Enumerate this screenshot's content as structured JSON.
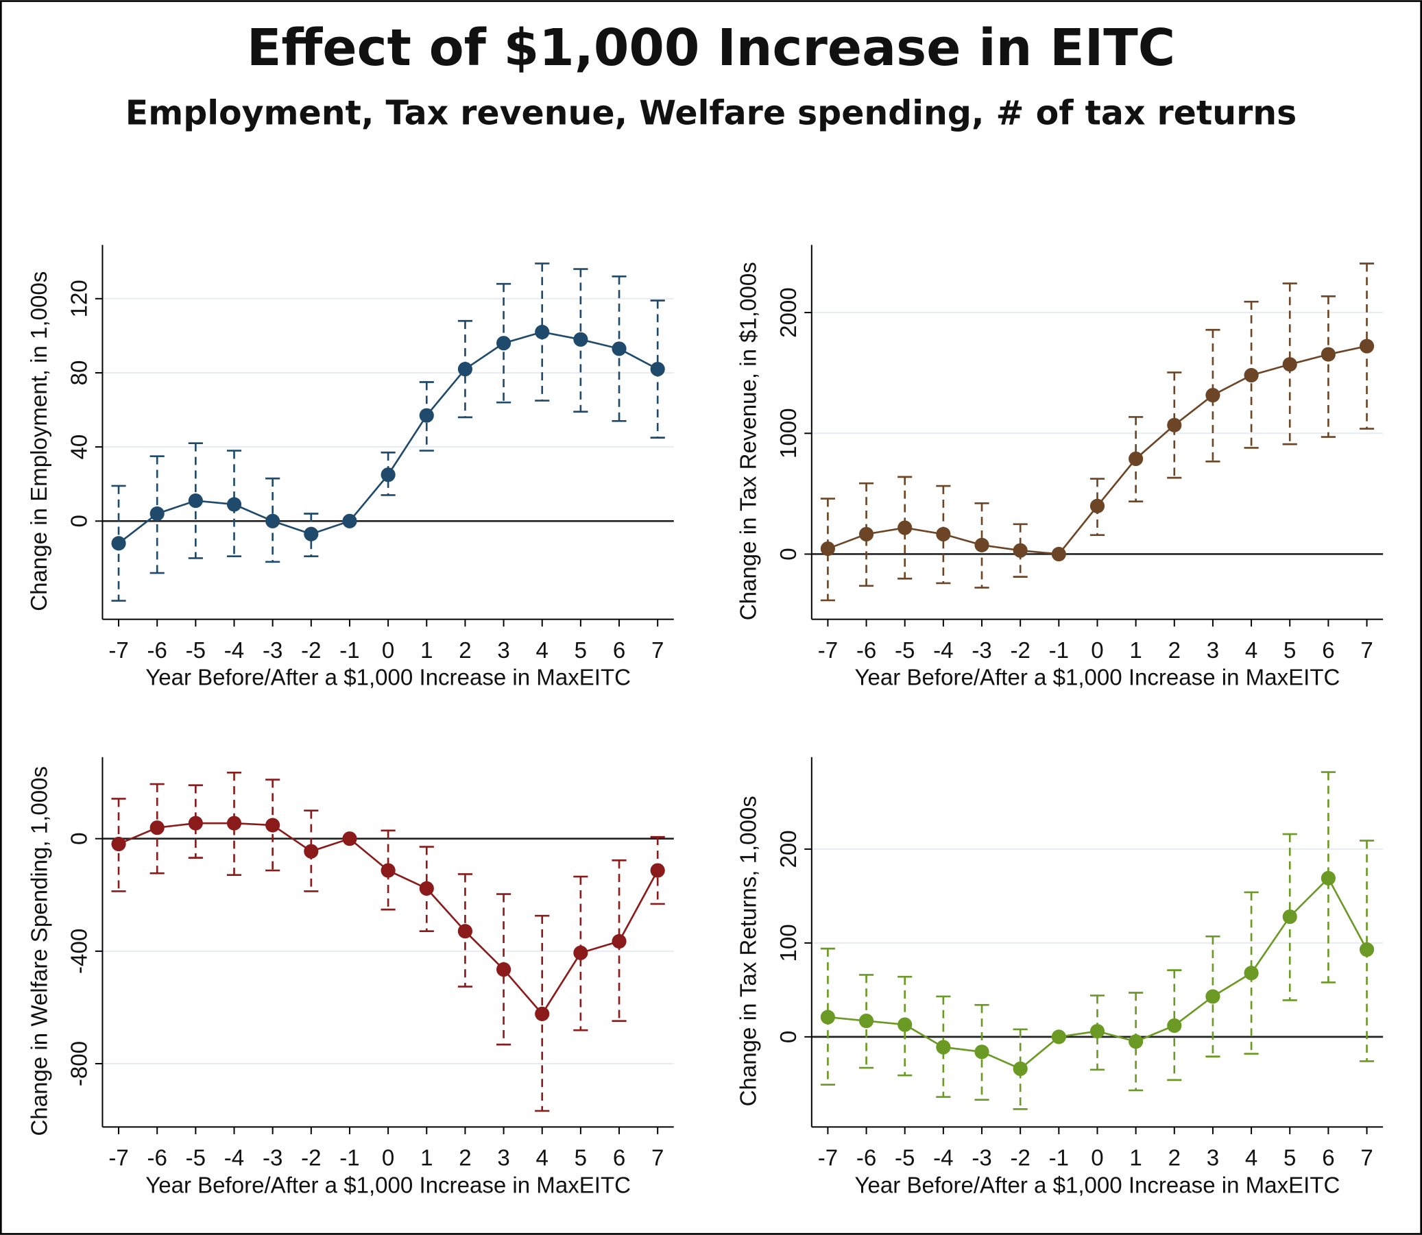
{
  "title": "Effect of $1,000 Increase in EITC",
  "subtitle": "Employment, Tax revenue, Welfare spending, # of tax returns",
  "chart_data": [
    {
      "type": "line",
      "ylabel": "Change in Employment, in 1,000s",
      "xlabel": "Year Before/After a $1,000 Increase in MaxEITC",
      "color": "#1f4a6b",
      "grid": true,
      "x": [
        -7,
        -6,
        -5,
        -4,
        -3,
        -2,
        -1,
        0,
        1,
        2,
        3,
        4,
        5,
        6,
        7
      ],
      "values": [
        -12,
        4,
        11,
        9,
        0,
        -7,
        0,
        25,
        57,
        82,
        96,
        102,
        98,
        93,
        82
      ],
      "ci_low": [
        -43,
        -28,
        -20,
        -19,
        -22,
        -19,
        0,
        14,
        38,
        56,
        64,
        65,
        59,
        54,
        45
      ],
      "ci_high": [
        19,
        35,
        42,
        38,
        23,
        4,
        0,
        37,
        75,
        108,
        128,
        139,
        136,
        132,
        119
      ],
      "xlim": [
        -7.42,
        7.42
      ],
      "ylim": [
        -53,
        149
      ],
      "xticks": [
        -7,
        -6,
        -5,
        -4,
        -3,
        -2,
        -1,
        0,
        1,
        2,
        3,
        4,
        5,
        6,
        7
      ],
      "yticks": [
        0,
        40,
        80,
        120
      ]
    },
    {
      "type": "line",
      "ylabel": "Change in Tax Revenue, in $1,000s",
      "xlabel": "Year Before/After a $1,000 Increase in MaxEITC",
      "color": "#6b4526",
      "grid": true,
      "x": [
        -7,
        -6,
        -5,
        -4,
        -3,
        -2,
        -1,
        0,
        1,
        2,
        3,
        4,
        5,
        6,
        7
      ],
      "values": [
        45,
        165,
        218,
        165,
        75,
        30,
        0,
        398,
        789,
        1068,
        1316,
        1481,
        1571,
        1654,
        1722
      ],
      "ci_low": [
        -383,
        -263,
        -203,
        -241,
        -278,
        -188,
        0,
        158,
        436,
        632,
        767,
        880,
        910,
        970,
        1038
      ],
      "ci_high": [
        459,
        586,
        639,
        564,
        421,
        248,
        0,
        624,
        1135,
        1504,
        1857,
        2090,
        2241,
        2135,
        2406
      ],
      "xlim": [
        -7.42,
        7.42
      ],
      "ylim": [
        -540,
        2560
      ],
      "xticks": [
        -7,
        -6,
        -5,
        -4,
        -3,
        -2,
        -1,
        0,
        1,
        2,
        3,
        4,
        5,
        6,
        7
      ],
      "yticks": [
        0,
        1000,
        2000
      ]
    },
    {
      "type": "line",
      "ylabel": "Change in Welfare Spending, 1,000s",
      "xlabel": "Year Before/After a $1,000 Increase in MaxEITC",
      "color": "#8b1a1a",
      "grid": true,
      "x": [
        -7,
        -6,
        -5,
        -4,
        -3,
        -2,
        -1,
        0,
        1,
        2,
        3,
        4,
        5,
        6,
        7
      ],
      "values": [
        -19,
        39,
        55,
        55,
        48,
        -45,
        0,
        -113,
        -177,
        -329,
        -465,
        -623,
        -406,
        -365,
        -113
      ],
      "ci_low": [
        -187,
        -123,
        -68,
        -129,
        -113,
        -187,
        0,
        -252,
        -329,
        -526,
        -732,
        -968,
        -681,
        -648,
        -232
      ],
      "ci_high": [
        142,
        194,
        190,
        235,
        210,
        100,
        0,
        29,
        -29,
        -126,
        -197,
        -274,
        -135,
        -77,
        6
      ],
      "xlim": [
        -7.42,
        7.42
      ],
      "ylim": [
        -1025,
        290
      ],
      "xticks": [
        -7,
        -6,
        -5,
        -4,
        -3,
        -2,
        -1,
        0,
        1,
        2,
        3,
        4,
        5,
        6,
        7
      ],
      "yticks": [
        -800,
        -400,
        0
      ]
    },
    {
      "type": "line",
      "ylabel": "Change in Tax Returns, 1,000s",
      "xlabel": "Year Before/After a $1,000 Increase in MaxEITC",
      "color": "#6a9a23",
      "grid": true,
      "x": [
        -7,
        -6,
        -5,
        -4,
        -3,
        -2,
        -1,
        0,
        1,
        2,
        3,
        4,
        5,
        6,
        7
      ],
      "values": [
        21,
        17,
        13,
        -11,
        -16,
        -34,
        0,
        6,
        -5,
        12,
        43,
        68,
        128,
        169,
        93
      ],
      "ci_low": [
        -51,
        -33,
        -41,
        -64,
        -67,
        -77,
        0,
        -35,
        -57,
        -46,
        -21,
        -18,
        39,
        58,
        -26
      ],
      "ci_high": [
        94,
        66,
        64,
        43,
        34,
        8,
        0,
        44,
        47,
        71,
        107,
        154,
        216,
        282,
        209
      ],
      "xlim": [
        -7.42,
        7.42
      ],
      "ylim": [
        -96,
        298
      ],
      "xticks": [
        -7,
        -6,
        -5,
        -4,
        -3,
        -2,
        -1,
        0,
        1,
        2,
        3,
        4,
        5,
        6,
        7
      ],
      "yticks": [
        0,
        100,
        200
      ]
    }
  ]
}
